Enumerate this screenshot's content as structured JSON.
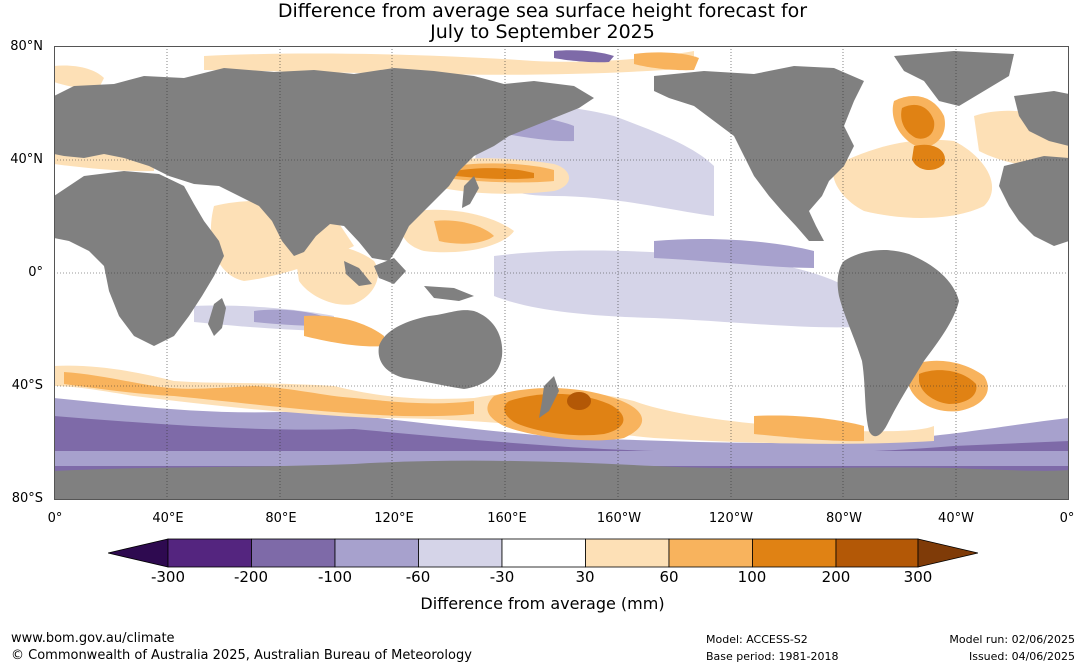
{
  "title_line1": "Difference from average sea surface height forecast for",
  "title_line2": "July to September 2025",
  "lat_labels": [
    "80°N",
    "40°N",
    "0°",
    "40°S",
    "80°S"
  ],
  "lon_labels": [
    "0°",
    "40°E",
    "80°E",
    "120°E",
    "160°E",
    "160°W",
    "120°W",
    "80°W",
    "40°W",
    "0°"
  ],
  "legend": {
    "title": "Difference from average (mm)",
    "ticks": [
      "-300",
      "-200",
      "-100",
      "-60",
      "-30",
      "30",
      "60",
      "100",
      "200",
      "300"
    ],
    "colors": [
      "#2e0a50",
      "#54257f",
      "#7e6aa8",
      "#a7a1cd",
      "#d5d4e8",
      "#ffffff",
      "#fde0b6",
      "#f8b35d",
      "#e08214",
      "#b35806",
      "#7f3b08"
    ]
  },
  "colors": {
    "land": "#808080",
    "ocean": "#ffffff"
  },
  "footer": {
    "url": "www.bom.gov.au/climate",
    "copyright": "© Commonwealth of Australia 2025, Australian Bureau of Meteorology",
    "model": "Model: ACCESS-S2",
    "base_period": "Base period: 1981-2018",
    "model_run": "Model run: 02/06/2025",
    "issued": "Issued: 04/06/2025"
  }
}
